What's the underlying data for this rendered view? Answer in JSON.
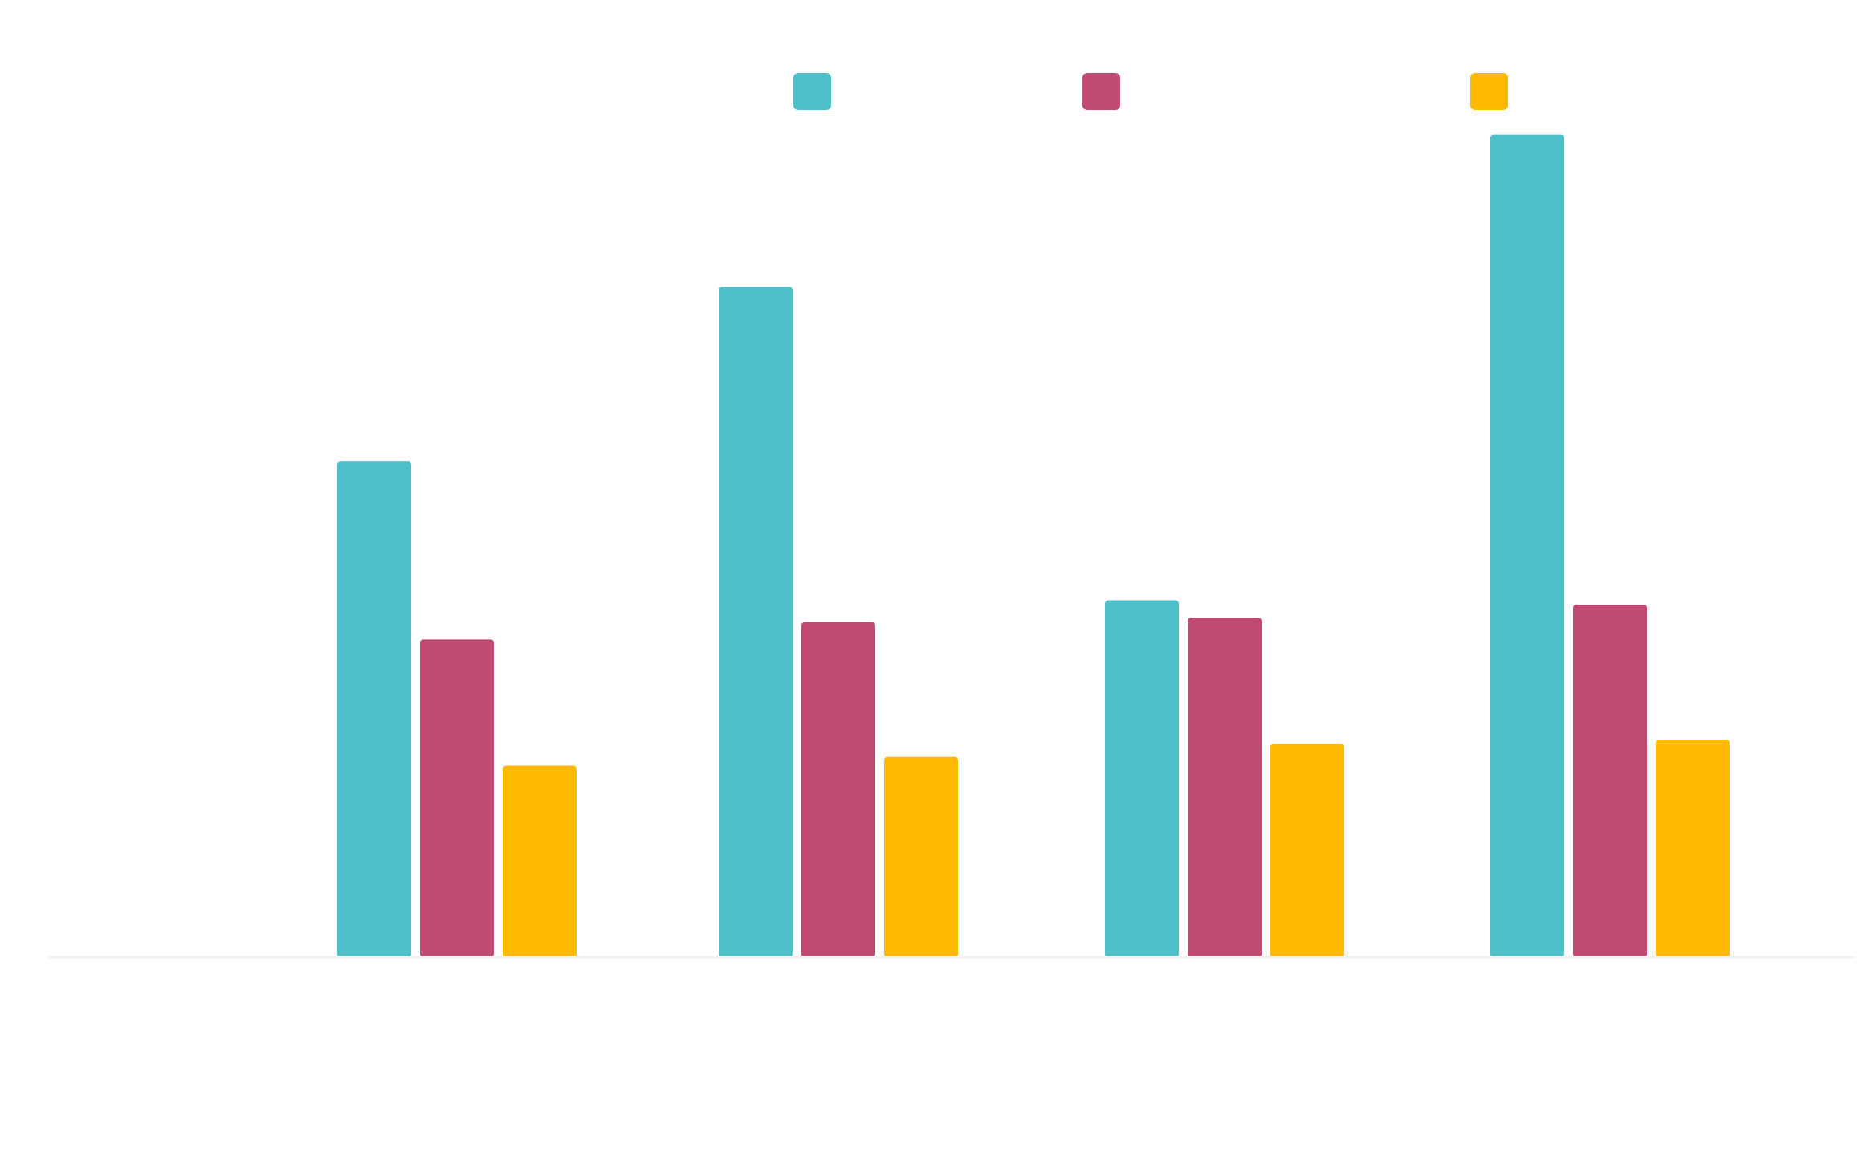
{
  "chart_data": {
    "type": "bar",
    "categories": [
      "",
      "",
      "",
      ""
    ],
    "series": [
      {
        "color": "#4FBFCA",
        "values": [
          5.7,
          7.7,
          4.1,
          9.45
        ]
      },
      {
        "color": "#C04A70",
        "values": [
          3.65,
          3.85,
          3.9,
          4.05
        ]
      },
      {
        "color": "#FDBA00",
        "values": [
          2.2,
          2.3,
          2.45,
          2.5
        ]
      }
    ],
    "title": "",
    "xlabel": "",
    "ylabel": "",
    "ylim": [
      0,
      10
    ],
    "grid": false,
    "legend": "top"
  }
}
